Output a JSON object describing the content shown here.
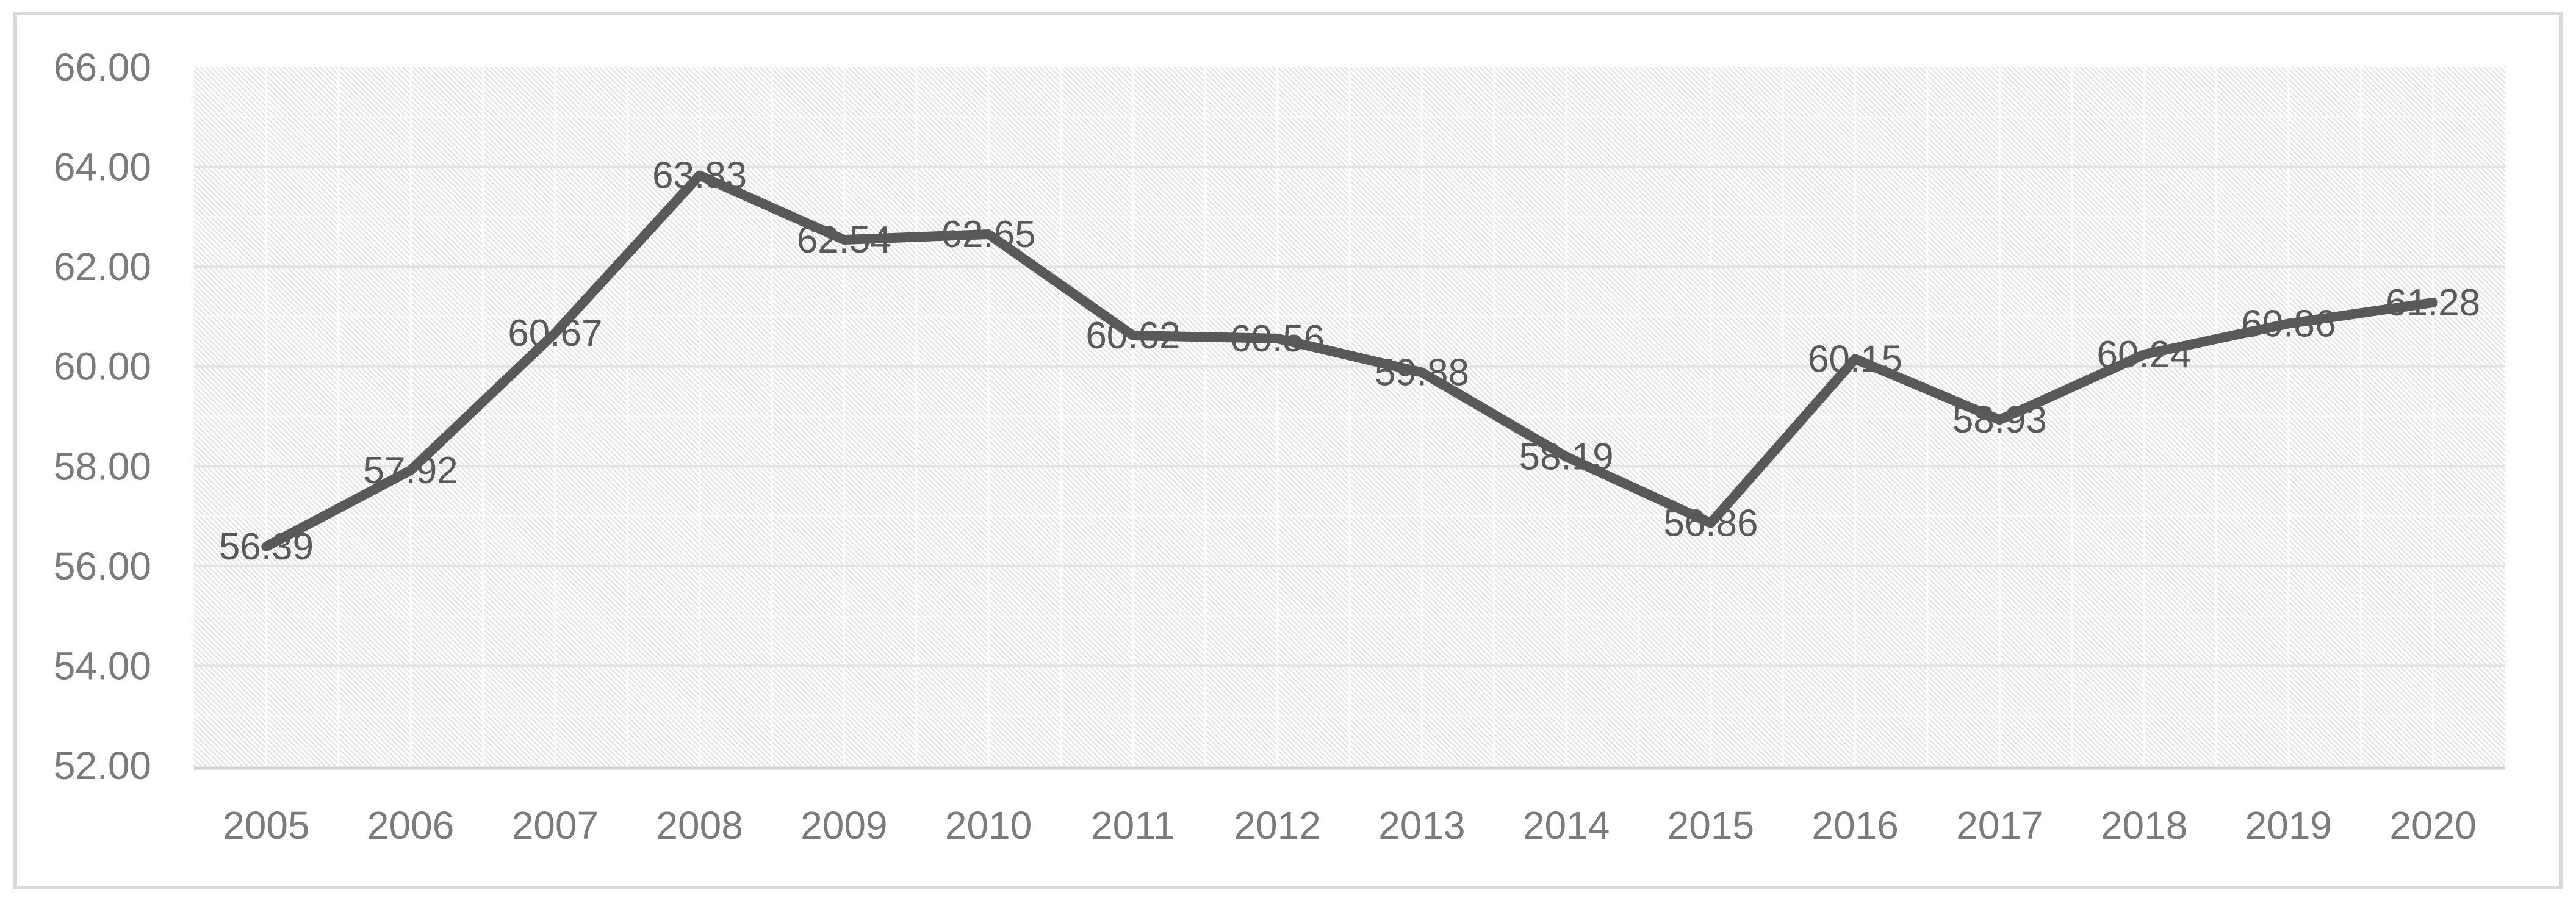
{
  "chart_data": {
    "type": "line",
    "categories": [
      "2005",
      "2006",
      "2007",
      "2008",
      "2009",
      "2010",
      "2011",
      "2012",
      "2013",
      "2014",
      "2015",
      "2016",
      "2017",
      "2018",
      "2019",
      "2020"
    ],
    "series": [
      {
        "values": [
          56.39,
          57.92,
          60.67,
          63.83,
          62.54,
          62.65,
          60.62,
          60.56,
          59.88,
          58.19,
          56.86,
          60.15,
          58.93,
          60.24,
          60.86,
          61.28
        ],
        "data_labels": [
          "56.39",
          "57.92",
          "60.67",
          "63.83",
          "62.54",
          "62.65",
          "60.62",
          "60.56",
          "59.88",
          "58.19",
          "56.86",
          "60.15",
          "58.93",
          "60.24",
          "60.86",
          "61.28"
        ]
      }
    ],
    "ylim": [
      52,
      66
    ],
    "y_tick_step": 2,
    "y_tick_labels": [
      "66.00",
      "64.00",
      "62.00",
      "60.00",
      "58.00",
      "56.00",
      "54.00",
      "52.00"
    ],
    "legend": "none",
    "grid": true,
    "plot_background": "diagonal-hatch",
    "data_label_position": "center"
  },
  "colors": {
    "background": "#ffffff",
    "chart_border": "#d9d9d9",
    "hatch_stripe": "#e1e1e1",
    "grid_seam": "#ffffff",
    "gridline": "#e3e3e3",
    "axis_line": "#cfcfcf",
    "line": "#595959",
    "data_label": "#595959",
    "tick_label": "#7b7b7b"
  }
}
